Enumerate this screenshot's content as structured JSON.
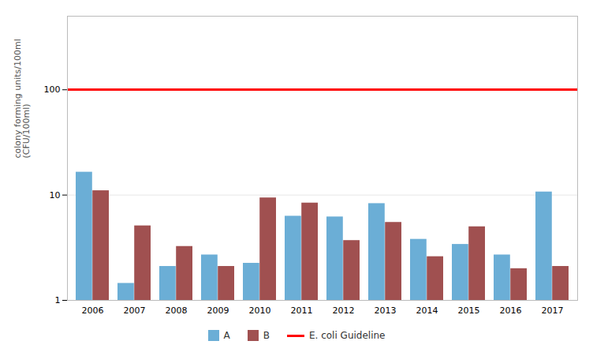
{
  "chart_data": {
    "type": "bar",
    "categories": [
      "2006",
      "2007",
      "2008",
      "2009",
      "2010",
      "2011",
      "2012",
      "2013",
      "2014",
      "2015",
      "2016",
      "2017"
    ],
    "series": [
      {
        "name": "A",
        "color": "#6baed6",
        "values": [
          16.5,
          1.45,
          2.1,
          2.7,
          2.25,
          6.3,
          6.2,
          8.3,
          3.8,
          3.4,
          2.7,
          10.7
        ]
      },
      {
        "name": "B",
        "color": "#a05050",
        "values": [
          11.0,
          5.1,
          3.25,
          2.1,
          9.4,
          8.4,
          3.7,
          5.5,
          2.6,
          5.0,
          2.0,
          2.1
        ]
      },
      {
        "name": "E. coli Guideline",
        "type": "line",
        "color": "#ff0000",
        "values": [
          100,
          100,
          100,
          100,
          100,
          100,
          100,
          100,
          100,
          100,
          100,
          100
        ]
      }
    ],
    "ylabel": "colony forming units/100ml\n(CFU/100ml)",
    "log": "y",
    "ylim": [
      1,
      500
    ],
    "yticks": [
      1,
      10,
      100
    ],
    "grid": true,
    "legend": "bottom"
  }
}
